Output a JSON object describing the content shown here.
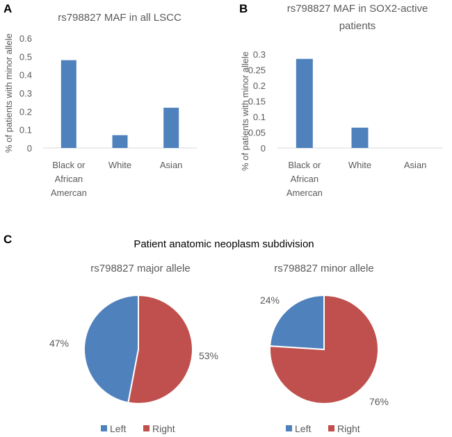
{
  "panels": {
    "a": "A",
    "b": "B",
    "c": "C"
  },
  "colors": {
    "blue": "#4F81BD",
    "red": "#C0504D",
    "text": "#595959",
    "axis": "#D9D9D9"
  },
  "pie_section_title": "Patient anatomic neoplasm subdivision",
  "chart_data": [
    {
      "type": "bar",
      "title": "rs798827 MAF in all LSCC",
      "ylabel": "% of patients with minor allele",
      "categories": [
        [
          "Black or",
          "African",
          "Amercan"
        ],
        [
          "White"
        ],
        [
          "Asian"
        ]
      ],
      "values": [
        0.48,
        0.07,
        0.22
      ],
      "ylim": [
        0,
        0.6
      ],
      "ticks": [
        "0",
        "0.1",
        "0.2",
        "0.3",
        "0.4",
        "0.5",
        "0.6"
      ],
      "tick_values": [
        0,
        0.1,
        0.2,
        0.3,
        0.4,
        0.5,
        0.6
      ]
    },
    {
      "type": "bar",
      "title": [
        "rs798827 MAF in SOX2-active",
        "patients"
      ],
      "ylabel": "% of patients with minor allele",
      "categories": [
        [
          "Black or",
          "African",
          "Amercan"
        ],
        [
          "White"
        ],
        [
          "Asian"
        ]
      ],
      "values": [
        0.285,
        0.065,
        0
      ],
      "ylim": [
        0,
        0.3
      ],
      "ticks": [
        "0",
        "0.05",
        "0.1",
        "0.15",
        "0.2",
        "0.25",
        "0.3"
      ],
      "tick_values": [
        0,
        0.05,
        0.1,
        0.15,
        0.2,
        0.25,
        0.3
      ]
    },
    {
      "type": "pie",
      "title": "rs798827 major allele",
      "labels": [
        "Left",
        "Right"
      ],
      "values": [
        47,
        53
      ],
      "value_labels": [
        "47%",
        "53%"
      ]
    },
    {
      "type": "pie",
      "title": "rs798827 minor allele",
      "labels": [
        "Left",
        "Right"
      ],
      "values": [
        24,
        76
      ],
      "value_labels": [
        "24%",
        "76%"
      ]
    }
  ]
}
